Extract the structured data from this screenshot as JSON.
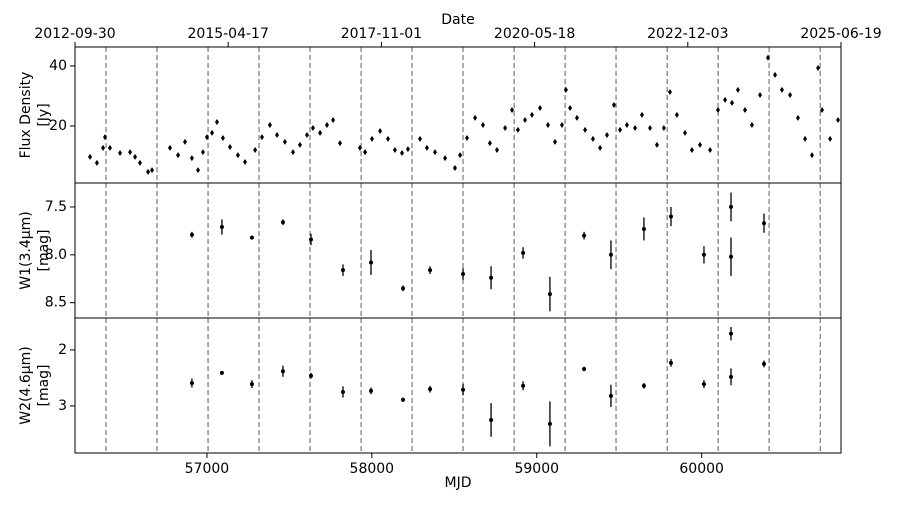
{
  "chart_data": [
    {
      "type": "scatter",
      "x2label": "Date",
      "ylabel": [
        "Flux Density",
        "[Jy]"
      ],
      "xlim": [
        56200,
        60845
      ],
      "ylim": [
        1,
        46.3
      ],
      "yticks": [
        20,
        40
      ],
      "x2ticks": [
        {
          "value": 56200,
          "label": "2012-09-30"
        },
        {
          "value": 57129,
          "label": "2015-04-17"
        },
        {
          "value": 58058,
          "label": "2017-11-01"
        },
        {
          "value": 58987,
          "label": "2020-05-18"
        },
        {
          "value": 59916,
          "label": "2022-12-03"
        },
        {
          "value": 60845,
          "label": "2025-06-19"
        }
      ],
      "vlines": [
        56388,
        56697,
        57007,
        57316,
        57625,
        57935,
        58244,
        58553,
        58863,
        59172,
        59481,
        59791,
        60100,
        60409,
        60719
      ],
      "color": "#000000",
      "x": [
        56291,
        56333,
        56370,
        56382,
        56412,
        56473,
        56534,
        56564,
        56594,
        56643,
        56667,
        56776,
        56825,
        56867,
        56909,
        56946,
        56976,
        57000,
        57031,
        57061,
        57097,
        57140,
        57188,
        57231,
        57292,
        57334,
        57382,
        57425,
        57473,
        57522,
        57564,
        57607,
        57643,
        57686,
        57728,
        57765,
        57807,
        57928,
        57959,
        58001,
        58050,
        58098,
        58140,
        58183,
        58219,
        58292,
        58334,
        58383,
        58444,
        58504,
        58535,
        58577,
        58626,
        58674,
        58716,
        58759,
        58808,
        58850,
        58886,
        58929,
        58971,
        59020,
        59068,
        59111,
        59153,
        59177,
        59202,
        59244,
        59293,
        59341,
        59384,
        59426,
        59468,
        59505,
        59547,
        59596,
        59638,
        59687,
        59729,
        59771,
        59808,
        59850,
        59899,
        59941,
        59990,
        60051,
        60099,
        60142,
        60184,
        60220,
        60263,
        60305,
        60354,
        60402,
        60445,
        60487,
        60536,
        60584,
        60627,
        60669,
        60706,
        60730,
        60779,
        60827
      ],
      "values": [
        9.7,
        7.7,
        12.7,
        16.3,
        12.7,
        11,
        11.3,
        9.7,
        7.7,
        4.7,
        5.3,
        12.7,
        10.3,
        14.7,
        9.3,
        5.3,
        11.3,
        16.3,
        17.7,
        21.3,
        16,
        13,
        10.3,
        8,
        12,
        16.3,
        20.3,
        17,
        14.7,
        11.3,
        13.7,
        17,
        19.3,
        17.7,
        20.3,
        22,
        14.3,
        12.7,
        11.3,
        15.7,
        18.3,
        15.7,
        12,
        11,
        12.3,
        15.7,
        12.7,
        11.3,
        9.3,
        6,
        10.3,
        16,
        22.7,
        20.3,
        14.3,
        12,
        19.3,
        25.3,
        18.7,
        22,
        23.7,
        26,
        20.3,
        14.7,
        20.3,
        32,
        26,
        22.7,
        18.7,
        15.7,
        12.7,
        17,
        27,
        18.7,
        20.3,
        19.3,
        23.7,
        19.3,
        13.7,
        19.3,
        31.3,
        23.7,
        17.7,
        12,
        13.7,
        12,
        25.3,
        28.7,
        27.7,
        32,
        25.3,
        20.3,
        30.3,
        42.7,
        37,
        32,
        30.3,
        22.7,
        15.7,
        10.3,
        39.3,
        25.3,
        15.7,
        22
      ]
    },
    {
      "type": "errorbar",
      "ylabel": [
        "W1(3.4μm)",
        "[mag]"
      ],
      "yinvert": true,
      "xlim": [
        56200,
        60845
      ],
      "ylim": [
        7.25,
        8.66
      ],
      "yticks": [
        7.5,
        {
          "value": 8,
          "label": "8.0"
        },
        8.5
      ],
      "color": "#000000",
      "x": [
        56909,
        57091,
        57273,
        57461,
        57631,
        57825,
        57995,
        58189,
        58353,
        58553,
        58723,
        58917,
        59080,
        59287,
        59450,
        59650,
        59814,
        60014,
        60178,
        60178,
        60378
      ],
      "values": [
        7.79,
        7.71,
        7.82,
        7.66,
        7.84,
        8.16,
        8.08,
        8.35,
        8.16,
        8.2,
        8.24,
        7.98,
        8.41,
        7.8,
        8.0,
        7.73,
        7.6,
        8.0,
        7.5,
        8.02,
        7.67
      ],
      "errors": [
        0.03,
        0.08,
        0.02,
        0.03,
        0.06,
        0.06,
        0.13,
        0.03,
        0.04,
        0.06,
        0.12,
        0.06,
        0.18,
        0.04,
        0.15,
        0.12,
        0.1,
        0.09,
        0.15,
        0.2,
        0.1
      ]
    },
    {
      "type": "errorbar",
      "ylabel": [
        "W2(4.6μm)",
        "[mag]"
      ],
      "yinvert": true,
      "xlabel": "MJD",
      "xlim": [
        56200,
        60845
      ],
      "ylim": [
        1.43,
        3.84
      ],
      "yticks": [
        2,
        3
      ],
      "xticks": [
        57000,
        58000,
        59000,
        60000
      ],
      "color": "#000000",
      "x": [
        56909,
        57091,
        57273,
        57461,
        57631,
        57825,
        57995,
        58189,
        58353,
        58553,
        58723,
        58917,
        59080,
        59287,
        59450,
        59650,
        59814,
        60014,
        60178,
        60178,
        60378
      ],
      "values": [
        2.59,
        2.41,
        2.61,
        2.38,
        2.46,
        2.75,
        2.73,
        2.89,
        2.7,
        2.71,
        3.25,
        2.64,
        3.32,
        2.34,
        2.82,
        2.64,
        2.23,
        2.61,
        1.71,
        2.48,
        2.25
      ],
      "errors": [
        0.08,
        0.03,
        0.07,
        0.1,
        0.05,
        0.1,
        0.06,
        0.04,
        0.06,
        0.1,
        0.3,
        0.08,
        0.4,
        0.04,
        0.2,
        0.05,
        0.07,
        0.07,
        0.12,
        0.15,
        0.06
      ]
    }
  ]
}
